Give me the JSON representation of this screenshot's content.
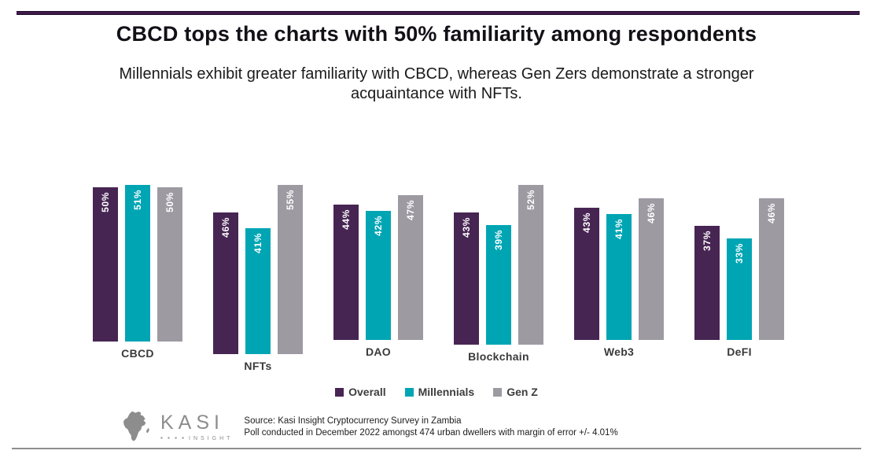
{
  "header": {
    "title": "CBCD tops the charts with 50% familiarity among respondents",
    "subtitle_line1": "Millennials exhibit greater familiarity with CBCD, whereas Gen Zers demonstrate a stronger",
    "subtitle_line2": "acquaintance with NFTs."
  },
  "chart_data": {
    "type": "bar",
    "orientation": "vertical",
    "title": "CBCD tops the charts with 50% familiarity among respondents",
    "categories": [
      "CBCD",
      "NFTs",
      "DAO",
      "Blockchain",
      "Web3",
      "DeFI"
    ],
    "series": [
      {
        "name": "Overall",
        "color": "#472553",
        "values": [
          50,
          46,
          44,
          43,
          43,
          37
        ]
      },
      {
        "name": "Millennials",
        "color": "#00a5b4",
        "values": [
          51,
          41,
          42,
          39,
          41,
          33
        ]
      },
      {
        "name": "Gen Z",
        "color": "#9d9aa2",
        "values": [
          50,
          55,
          47,
          52,
          46,
          46
        ]
      }
    ],
    "value_label_format": "{value}%",
    "value_labels_rotated": true,
    "value_label_color": "#ffffff",
    "xlabel": "",
    "ylabel": "",
    "ylim": [
      0,
      57
    ],
    "grid": false,
    "axes_visible": false,
    "legend_position": "bottom"
  },
  "footer": {
    "logo": {
      "icon": "africa-map-icon",
      "brand": "KASI",
      "dots": "▪ ▪ ▪ ▪",
      "tagline": "INSIGHT"
    },
    "source_line1": "Source: Kasi Insight Cryptocurrency Survey in Zambia",
    "source_line2": "Poll conducted in December 2022 amongst 474 urban dwellers with margin of error +/- 4.01%"
  },
  "colors": {
    "top_rule": "#3f1b4b",
    "bottom_rule": "#8f8f8f",
    "logo_gray": "#8d8d8d"
  }
}
